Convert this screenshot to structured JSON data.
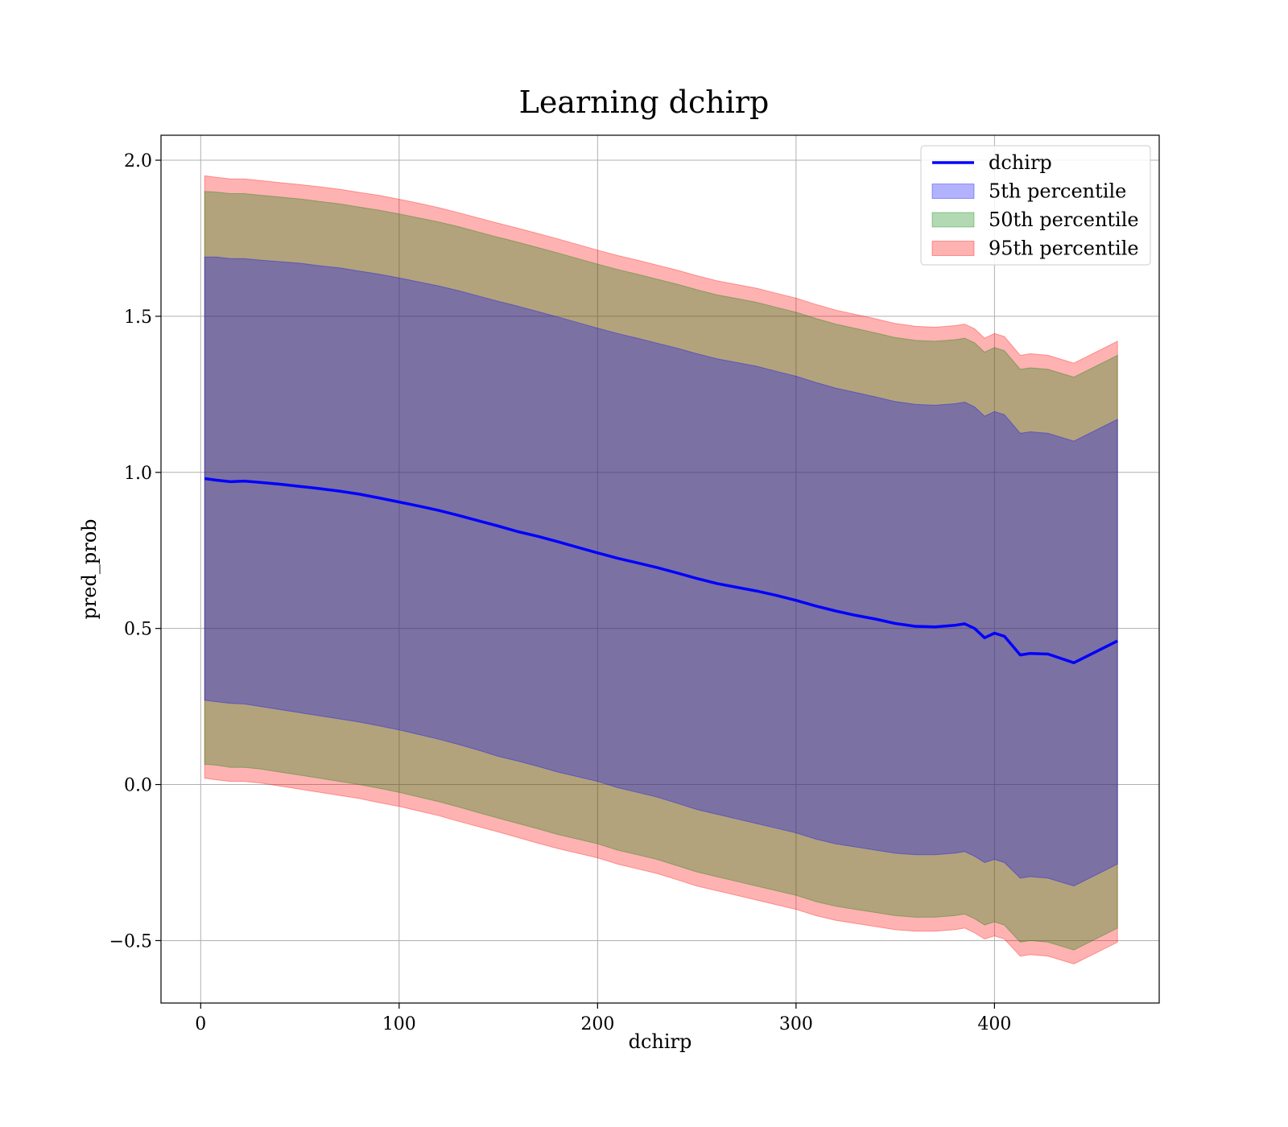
{
  "chart_data": {
    "type": "line",
    "title": "Learning dchirp",
    "xlabel": "dchirp",
    "ylabel": "pred_prob",
    "xlim": [
      -20,
      483
    ],
    "ylim": [
      -0.7,
      2.08
    ],
    "x_ticks": [
      0,
      100,
      200,
      300,
      400
    ],
    "x_tick_labels": [
      "0",
      "100",
      "200",
      "300",
      "400"
    ],
    "y_ticks": [
      -0.5,
      0.0,
      0.5,
      1.0,
      1.5,
      2.0
    ],
    "y_tick_labels": [
      "−0.5",
      "0.0",
      "0.5",
      "1.0",
      "1.5",
      "2.0"
    ],
    "grid": true,
    "legend_position": "top-right",
    "legend": [
      {
        "label": "dchirp",
        "kind": "line",
        "color": "#0000ff"
      },
      {
        "label": "5th percentile",
        "kind": "patch",
        "color": "#0000ff",
        "alpha": 0.3
      },
      {
        "label": "50th percentile",
        "kind": "patch",
        "color": "#008000",
        "alpha": 0.3
      },
      {
        "label": "95th percentile",
        "kind": "patch",
        "color": "#ff0000",
        "alpha": 0.3
      }
    ],
    "x": [
      2,
      8,
      15,
      22,
      30,
      40,
      50,
      60,
      70,
      80,
      90,
      100,
      110,
      120,
      130,
      140,
      150,
      160,
      170,
      180,
      190,
      200,
      210,
      220,
      230,
      240,
      250,
      260,
      270,
      280,
      290,
      300,
      310,
      320,
      330,
      340,
      350,
      360,
      370,
      380,
      385,
      390,
      395,
      400,
      405,
      413,
      418,
      427,
      440,
      462
    ],
    "series": [
      {
        "name": "dchirp",
        "role": "line",
        "color": "#0000ff",
        "values": [
          0.98,
          0.975,
          0.97,
          0.972,
          0.968,
          0.962,
          0.955,
          0.948,
          0.94,
          0.93,
          0.918,
          0.905,
          0.892,
          0.878,
          0.862,
          0.845,
          0.828,
          0.81,
          0.795,
          0.778,
          0.76,
          0.742,
          0.725,
          0.71,
          0.695,
          0.678,
          0.66,
          0.644,
          0.632,
          0.62,
          0.606,
          0.59,
          0.572,
          0.556,
          0.542,
          0.53,
          0.516,
          0.507,
          0.505,
          0.51,
          0.515,
          0.5,
          0.47,
          0.485,
          0.475,
          0.415,
          0.42,
          0.418,
          0.39,
          0.46
        ]
      },
      {
        "name": "5th percentile",
        "role": "band",
        "color": "#0000ff",
        "alpha": 0.3,
        "lower": [
          0.27,
          0.265,
          0.26,
          0.258,
          0.25,
          0.24,
          0.23,
          0.22,
          0.21,
          0.2,
          0.188,
          0.175,
          0.16,
          0.145,
          0.128,
          0.11,
          0.09,
          0.075,
          0.058,
          0.04,
          0.025,
          0.01,
          -0.01,
          -0.025,
          -0.04,
          -0.06,
          -0.08,
          -0.095,
          -0.11,
          -0.125,
          -0.14,
          -0.155,
          -0.175,
          -0.19,
          -0.2,
          -0.21,
          -0.22,
          -0.225,
          -0.225,
          -0.22,
          -0.215,
          -0.23,
          -0.25,
          -0.24,
          -0.25,
          -0.3,
          -0.295,
          -0.3,
          -0.325,
          -0.255
        ],
        "upper": [
          1.69,
          1.69,
          1.685,
          1.685,
          1.68,
          1.675,
          1.67,
          1.662,
          1.655,
          1.645,
          1.635,
          1.623,
          1.61,
          1.597,
          1.582,
          1.565,
          1.548,
          1.532,
          1.515,
          1.498,
          1.48,
          1.462,
          1.445,
          1.43,
          1.414,
          1.398,
          1.38,
          1.364,
          1.352,
          1.34,
          1.324,
          1.308,
          1.288,
          1.27,
          1.256,
          1.242,
          1.227,
          1.218,
          1.215,
          1.22,
          1.225,
          1.21,
          1.18,
          1.195,
          1.185,
          1.125,
          1.13,
          1.125,
          1.1,
          1.17
        ]
      },
      {
        "name": "50th percentile",
        "role": "band",
        "color": "#008000",
        "alpha": 0.3,
        "lower": [
          0.065,
          0.062,
          0.055,
          0.055,
          0.05,
          0.04,
          0.03,
          0.02,
          0.01,
          0.0,
          -0.012,
          -0.025,
          -0.04,
          -0.055,
          -0.072,
          -0.09,
          -0.108,
          -0.125,
          -0.142,
          -0.16,
          -0.175,
          -0.19,
          -0.21,
          -0.225,
          -0.24,
          -0.26,
          -0.28,
          -0.295,
          -0.31,
          -0.325,
          -0.34,
          -0.355,
          -0.375,
          -0.39,
          -0.4,
          -0.41,
          -0.42,
          -0.425,
          -0.425,
          -0.42,
          -0.415,
          -0.43,
          -0.45,
          -0.44,
          -0.45,
          -0.505,
          -0.5,
          -0.505,
          -0.53,
          -0.46
        ],
        "upper": [
          1.9,
          1.898,
          1.893,
          1.893,
          1.888,
          1.882,
          1.876,
          1.868,
          1.86,
          1.85,
          1.84,
          1.828,
          1.815,
          1.802,
          1.787,
          1.77,
          1.753,
          1.737,
          1.72,
          1.703,
          1.685,
          1.667,
          1.65,
          1.635,
          1.619,
          1.603,
          1.585,
          1.569,
          1.557,
          1.545,
          1.529,
          1.513,
          1.493,
          1.475,
          1.461,
          1.447,
          1.432,
          1.423,
          1.42,
          1.425,
          1.43,
          1.415,
          1.385,
          1.4,
          1.39,
          1.33,
          1.335,
          1.33,
          1.305,
          1.375
        ]
      },
      {
        "name": "95th percentile",
        "role": "band",
        "color": "#ff0000",
        "alpha": 0.3,
        "lower": [
          0.02,
          0.015,
          0.01,
          0.01,
          0.005,
          -0.005,
          -0.015,
          -0.025,
          -0.035,
          -0.045,
          -0.058,
          -0.07,
          -0.085,
          -0.1,
          -0.118,
          -0.135,
          -0.152,
          -0.17,
          -0.188,
          -0.205,
          -0.22,
          -0.235,
          -0.255,
          -0.27,
          -0.285,
          -0.305,
          -0.325,
          -0.34,
          -0.355,
          -0.37,
          -0.385,
          -0.4,
          -0.42,
          -0.435,
          -0.445,
          -0.455,
          -0.465,
          -0.47,
          -0.47,
          -0.465,
          -0.46,
          -0.475,
          -0.495,
          -0.485,
          -0.495,
          -0.55,
          -0.545,
          -0.55,
          -0.575,
          -0.505
        ],
        "upper": [
          1.95,
          1.945,
          1.94,
          1.94,
          1.935,
          1.928,
          1.922,
          1.915,
          1.907,
          1.897,
          1.887,
          1.875,
          1.862,
          1.848,
          1.832,
          1.815,
          1.798,
          1.782,
          1.765,
          1.748,
          1.73,
          1.712,
          1.695,
          1.68,
          1.664,
          1.648,
          1.63,
          1.614,
          1.602,
          1.59,
          1.574,
          1.558,
          1.538,
          1.52,
          1.506,
          1.492,
          1.477,
          1.468,
          1.465,
          1.47,
          1.475,
          1.46,
          1.43,
          1.445,
          1.435,
          1.375,
          1.38,
          1.375,
          1.35,
          1.42
        ]
      }
    ]
  }
}
